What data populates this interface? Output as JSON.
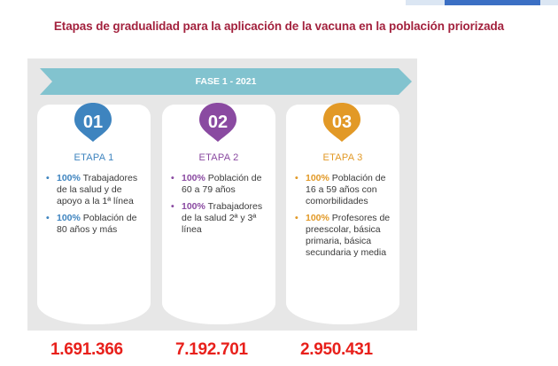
{
  "title": "Etapas de gradualidad para la aplicación de la vacuna en la población priorizada",
  "phase": "FASE 1 - 2021",
  "colors": {
    "title": "#a3223e",
    "banner": "#82c3cf",
    "stage1": "#3e84bf",
    "stage2": "#8a4aa1",
    "stage3": "#e29926",
    "totals": "#e8201b"
  },
  "stages": [
    {
      "number": "01",
      "label": "ETAPA 1",
      "items": [
        {
          "pct": "100%",
          "text": " Trabajadores de la salud y de apoyo a la 1ª línea"
        },
        {
          "pct": "100%",
          "text": " Población de 80 años y más"
        }
      ],
      "total": "1.691.366"
    },
    {
      "number": "02",
      "label": "ETAPA 2",
      "items": [
        {
          "pct": "100%",
          "text": " Población de 60 a 79 años"
        },
        {
          "pct": "100%",
          "text": " Trabajadores de la salud 2ª y 3ª línea"
        }
      ],
      "total": "7.192.701"
    },
    {
      "number": "03",
      "label": "ETAPA 3",
      "items": [
        {
          "pct": "100%",
          "text": " Población de 16 a 59 años con comorbilidades"
        },
        {
          "pct": "100%",
          "text": " Profesores de preescolar, básica primaria, básica secundaria y media"
        }
      ],
      "total": "2.950.431"
    }
  ]
}
